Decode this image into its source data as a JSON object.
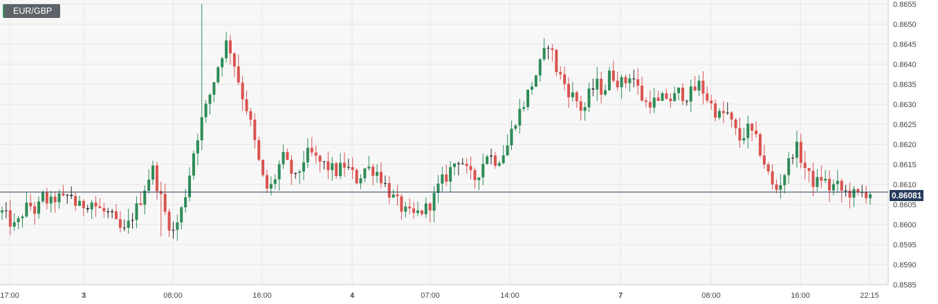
{
  "symbol": "EUR/GBP",
  "last_price_label": "0.86081",
  "colors": {
    "up": "#2e8b57",
    "down": "#d9534f",
    "neutral": "#222222",
    "grid": "#e4e4e4",
    "plot_bg": "#f7f7f7",
    "price_line": "#253a5c"
  },
  "chart_data": {
    "type": "candlestick",
    "x_tick_labels": [
      "17:00",
      "3",
      "08:00",
      "16:00",
      "4",
      "07:00",
      "14:00",
      "7",
      "08:00",
      "16:00",
      "22:15"
    ],
    "x_tick_bold": [
      false,
      true,
      false,
      false,
      true,
      false,
      false,
      true,
      false,
      false,
      false
    ],
    "y_tick_labels": [
      "0.8655",
      "0.8650",
      "0.8645",
      "0.8640",
      "0.8635",
      "0.8630",
      "0.8625",
      "0.8620",
      "0.8615",
      "0.8610",
      "0.8605",
      "0.8600",
      "0.8595",
      "0.8590",
      "0.8585"
    ],
    "ylim": [
      0.8585,
      0.8656
    ],
    "last_price": 0.86081,
    "close_path": [
      0.8603,
      0.8601,
      0.8599,
      0.8603,
      0.8605,
      0.8603,
      0.8607,
      0.8605,
      0.8607,
      0.8606,
      0.8608,
      0.8604,
      0.8605,
      0.8606,
      0.8604,
      0.8603,
      0.8602,
      0.8599,
      0.8598,
      0.8602,
      0.8605,
      0.861,
      0.8614,
      0.8608,
      0.8602,
      0.8598,
      0.8602,
      0.8609,
      0.8618,
      0.8625,
      0.863,
      0.8636,
      0.8642,
      0.8646,
      0.864,
      0.8633,
      0.8628,
      0.862,
      0.8612,
      0.8608,
      0.8612,
      0.8617,
      0.8614,
      0.8611,
      0.8616,
      0.8618,
      0.8616,
      0.8615,
      0.8614,
      0.8613,
      0.8615,
      0.8613,
      0.8611,
      0.8614,
      0.8614,
      0.8613,
      0.861,
      0.8607,
      0.8605,
      0.8603,
      0.8602,
      0.8603,
      0.8604,
      0.8606,
      0.861,
      0.8612,
      0.8615,
      0.8617,
      0.8613,
      0.8611,
      0.8614,
      0.8618,
      0.8616,
      0.8617,
      0.862,
      0.8626,
      0.8629,
      0.8633,
      0.8637,
      0.8641,
      0.8646,
      0.8639,
      0.8636,
      0.8633,
      0.8631,
      0.8628,
      0.8633,
      0.8635,
      0.8633,
      0.8638,
      0.8636,
      0.8635,
      0.8638,
      0.8634,
      0.863,
      0.8631,
      0.863,
      0.8632,
      0.8631,
      0.8633,
      0.8632,
      0.8633,
      0.8635,
      0.8632,
      0.8629,
      0.8627,
      0.8628,
      0.8624,
      0.8621,
      0.8624,
      0.8622,
      0.8618,
      0.8613,
      0.8608,
      0.8611,
      0.8615,
      0.862,
      0.8616,
      0.8612,
      0.861,
      0.8612,
      0.8609,
      0.861,
      0.8608,
      0.8608,
      0.8607,
      0.8608,
      0.8608
    ]
  }
}
